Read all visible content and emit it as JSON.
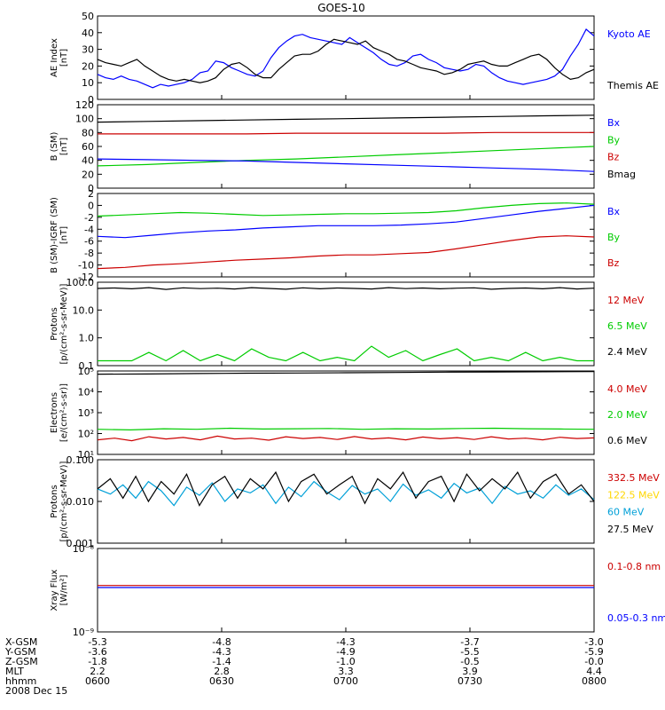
{
  "title": "GOES-10",
  "colors": {
    "black": "#000000",
    "blue": "#0000ff",
    "green": "#00cc00",
    "red": "#cc0000",
    "cyan": "#00a0d8",
    "yellow": "#ffd700"
  },
  "chart_data": [
    {
      "id": "ae",
      "type": "line",
      "ylabel": [
        "AE Index",
        "[nT]"
      ],
      "yticks": [
        "50",
        "40",
        "30",
        "20",
        "10",
        "0"
      ],
      "ylim": [
        0,
        50
      ],
      "legend": [
        {
          "name": "Kyoto AE",
          "color": "#0000ff"
        },
        {
          "name": "Themis AE",
          "color": "#000000"
        }
      ],
      "series": [
        {
          "name": "Kyoto AE",
          "color": "#0000ff",
          "y": [
            15,
            13,
            12,
            14,
            12,
            11,
            9,
            7,
            9,
            8,
            9,
            10,
            12,
            16,
            17,
            23,
            22,
            19,
            17,
            15,
            14,
            17,
            25,
            31,
            35,
            38,
            39,
            37,
            36,
            35,
            34,
            33,
            37,
            34,
            31,
            28,
            24,
            21,
            20,
            22,
            26,
            27,
            24,
            22,
            19,
            18,
            17,
            18,
            21,
            20,
            16,
            13,
            11,
            10,
            9,
            10,
            11,
            12,
            14,
            18,
            26,
            33,
            42,
            38
          ]
        },
        {
          "name": "Themis AE",
          "color": "#000000",
          "y": [
            24,
            22,
            21,
            20,
            22,
            24,
            20,
            17,
            14,
            12,
            11,
            12,
            11,
            10,
            11,
            13,
            18,
            21,
            22,
            19,
            15,
            13,
            13,
            18,
            22,
            26,
            27,
            27,
            29,
            33,
            36,
            35,
            34,
            33,
            35,
            31,
            29,
            27,
            24,
            23,
            21,
            19,
            18,
            17,
            15,
            16,
            18,
            21,
            22,
            23,
            21,
            20,
            20,
            22,
            24,
            26,
            27,
            24,
            19,
            15,
            12,
            13,
            16,
            18
          ]
        }
      ]
    },
    {
      "id": "bfield",
      "type": "line",
      "ylabel": [
        "B (SM)",
        "[nT]"
      ],
      "yticks": [
        "120",
        "100",
        "80",
        "60",
        "40",
        "20",
        "0"
      ],
      "ylim": [
        0,
        120
      ],
      "legend": [
        {
          "name": "Bx",
          "color": "#0000ff"
        },
        {
          "name": "By",
          "color": "#00cc00"
        },
        {
          "name": "Bz",
          "color": "#cc0000"
        },
        {
          "name": "Bmag",
          "color": "#000000"
        }
      ],
      "series": [
        {
          "name": "Bmag",
          "color": "#000000",
          "y": [
            95,
            96,
            97,
            98,
            99,
            100,
            101,
            102,
            103,
            104,
            105
          ]
        },
        {
          "name": "Bz",
          "color": "#cc0000",
          "y": [
            78,
            78,
            78,
            78,
            79,
            79,
            79,
            79,
            80,
            80,
            80
          ]
        },
        {
          "name": "By",
          "color": "#00cc00",
          "y": [
            32,
            34,
            37,
            40,
            42,
            45,
            48,
            51,
            54,
            57,
            60
          ]
        },
        {
          "name": "Bx",
          "color": "#0000ff",
          "y": [
            42,
            41,
            40,
            39,
            37,
            35,
            33,
            31,
            29,
            27,
            24
          ]
        }
      ]
    },
    {
      "id": "bdiff",
      "type": "line",
      "ylabel": [
        "B (SM)-IGRF (SM)",
        "[nT]"
      ],
      "yticks": [
        "2",
        "0",
        "-2",
        "-4",
        "-6",
        "-8",
        "-10",
        "-12"
      ],
      "ylim": [
        -12,
        2
      ],
      "legend": [
        {
          "name": "Bx",
          "color": "#0000ff"
        },
        {
          "name": "By",
          "color": "#00cc00"
        },
        {
          "name": "Bz",
          "color": "#cc0000"
        }
      ],
      "series": [
        {
          "name": "By",
          "color": "#00cc00",
          "y": [
            -1.8,
            -1.6,
            -1.4,
            -1.2,
            -1.3,
            -1.5,
            -1.7,
            -1.6,
            -1.5,
            -1.4,
            -1.4,
            -1.3,
            -1.2,
            -0.9,
            -0.4,
            0,
            0.3,
            0.4,
            0.2
          ]
        },
        {
          "name": "Bx",
          "color": "#0000ff",
          "y": [
            -5.2,
            -5.4,
            -5.0,
            -4.6,
            -4.3,
            -4.1,
            -3.8,
            -3.6,
            -3.4,
            -3.4,
            -3.4,
            -3.3,
            -3.1,
            -2.8,
            -2.2,
            -1.6,
            -1.0,
            -0.5,
            0.0
          ]
        },
        {
          "name": "Bz",
          "color": "#cc0000",
          "y": [
            -10.6,
            -10.4,
            -10.0,
            -9.8,
            -9.5,
            -9.2,
            -9.0,
            -8.8,
            -8.5,
            -8.3,
            -8.3,
            -8.1,
            -7.9,
            -7.3,
            -6.6,
            -5.9,
            -5.3,
            -5.1,
            -5.3
          ]
        }
      ]
    },
    {
      "id": "protons_low",
      "type": "line",
      "scale": "log",
      "ylabel": [
        "Protons",
        "[p/(cm²-s-sr-MeV)]"
      ],
      "yticks": [
        "100.0",
        "10.0",
        "1.0",
        "0.1"
      ],
      "ylim": [
        0.1,
        100
      ],
      "legend": [
        {
          "name": "12 MeV",
          "color": "#cc0000"
        },
        {
          "name": "6.5 MeV",
          "color": "#00cc00"
        },
        {
          "name": "2.4 MeV",
          "color": "#000000"
        }
      ],
      "series": [
        {
          "name": "2.4 MeV",
          "color": "#000000",
          "y": [
            60,
            62,
            58,
            64,
            55,
            63,
            59,
            61,
            57,
            64,
            60,
            56,
            63,
            58,
            62,
            60,
            57,
            64,
            59,
            62,
            58,
            61,
            63,
            56,
            60,
            62,
            58,
            64,
            57,
            61
          ]
        },
        {
          "name": "6.5 MeV",
          "color": "#00cc00",
          "y": [
            0.15,
            0.15,
            0.15,
            0.3,
            0.15,
            0.35,
            0.15,
            0.25,
            0.15,
            0.4,
            0.2,
            0.15,
            0.3,
            0.15,
            0.2,
            0.15,
            0.5,
            0.2,
            0.35,
            0.15,
            0.25,
            0.4,
            0.15,
            0.2,
            0.15,
            0.3,
            0.15,
            0.2,
            0.15,
            0.15
          ]
        }
      ]
    },
    {
      "id": "electrons",
      "type": "line",
      "scale": "log",
      "ylabel": [
        "Electrons",
        "[e/(cm²-s-sr)]"
      ],
      "yticks": [
        "10⁵",
        "10⁴",
        "10³",
        "10²",
        "10¹"
      ],
      "ylim": [
        10,
        100000
      ],
      "legend": [
        {
          "name": "4.0 MeV",
          "color": "#cc0000"
        },
        {
          "name": "2.0 MeV",
          "color": "#00cc00"
        },
        {
          "name": "0.6 MeV",
          "color": "#000000"
        }
      ],
      "series": [
        {
          "name": "0.6 MeV",
          "color": "#000000",
          "y": [
            70000,
            72000,
            75000,
            78000,
            80000,
            82000,
            85000,
            88000,
            90000,
            92000,
            94000
          ]
        },
        {
          "name": "2.0 MeV",
          "color": "#00cc00",
          "y": [
            160,
            150,
            170,
            160,
            180,
            165,
            170,
            175,
            160,
            170,
            165,
            175,
            180,
            170,
            165,
            160
          ]
        },
        {
          "name": "4.0 MeV",
          "color": "#cc0000",
          "y": [
            50,
            60,
            45,
            70,
            55,
            65,
            50,
            75,
            55,
            60,
            48,
            70,
            58,
            65,
            52,
            72,
            55,
            62,
            50,
            68,
            56,
            64,
            52,
            70,
            55,
            60,
            50,
            66,
            58,
            62
          ]
        }
      ]
    },
    {
      "id": "protons_high",
      "type": "line",
      "scale": "log",
      "ylabel": [
        "Protons",
        "[p/(cm²-s-sr-MeV)]"
      ],
      "yticks": [
        "0.100",
        "0.010",
        "0.001"
      ],
      "ylim": [
        0.001,
        0.1
      ],
      "legend": [
        {
          "name": "332.5 MeV",
          "color": "#cc0000"
        },
        {
          "name": "122.5 MeV",
          "color": "#ffd700"
        },
        {
          "name": "60 MeV",
          "color": "#00a0d8"
        },
        {
          "name": "27.5 MeV",
          "color": "#000000"
        }
      ],
      "series": [
        {
          "name": "60 MeV",
          "color": "#00a0d8",
          "y": [
            0.02,
            0.015,
            0.025,
            0.012,
            0.03,
            0.018,
            0.008,
            0.022,
            0.014,
            0.028,
            0.01,
            0.02,
            0.016,
            0.025,
            0.009,
            0.022,
            0.013,
            0.03,
            0.017,
            0.011,
            0.024,
            0.015,
            0.02,
            0.01,
            0.026,
            0.014,
            0.019,
            0.012,
            0.027,
            0.016,
            0.021,
            0.009,
            0.023,
            0.015,
            0.018,
            0.012,
            0.025,
            0.014,
            0.02,
            0.011
          ]
        },
        {
          "name": "27.5 MeV",
          "color": "#000000",
          "y": [
            0.02,
            0.035,
            0.012,
            0.04,
            0.01,
            0.03,
            0.015,
            0.045,
            0.008,
            0.025,
            0.04,
            0.012,
            0.035,
            0.02,
            0.05,
            0.01,
            0.03,
            0.045,
            0.015,
            0.025,
            0.04,
            0.009,
            0.035,
            0.02,
            0.05,
            0.012,
            0.03,
            0.04,
            0.01,
            0.045,
            0.018,
            0.035,
            0.02,
            0.05,
            0.012,
            0.03,
            0.045,
            0.015,
            0.025,
            0.01
          ]
        }
      ]
    },
    {
      "id": "xray",
      "type": "line",
      "scale": "log",
      "ylabel": [
        "Xray Flux",
        "[W/m²]"
      ],
      "yticks": [
        "10⁻⁸",
        "10⁻⁹"
      ],
      "ylim": [
        1e-09,
        1e-08
      ],
      "legend": [
        {
          "name": "0.1-0.8 nm",
          "color": "#cc0000"
        },
        {
          "name": "0.05-0.3 nm",
          "color": "#0000ff"
        }
      ],
      "series": [
        {
          "name": "0.1-0.8 nm",
          "color": "#cc0000",
          "y": [
            3.6e-09,
            3.6e-09
          ]
        },
        {
          "name": "0.05-0.3 nm",
          "color": "#0000ff",
          "y": [
            3.4e-09,
            3.4e-09
          ]
        }
      ]
    }
  ],
  "footer": {
    "rows": [
      {
        "label": "X-GSM",
        "values": [
          "-5.3",
          "-4.8",
          "-4.3",
          "-3.7",
          "-3.0"
        ]
      },
      {
        "label": "Y-GSM",
        "values": [
          "-3.6",
          "-4.3",
          "-4.9",
          "-5.5",
          "-5.9"
        ]
      },
      {
        "label": "Z-GSM",
        "values": [
          "-1.8",
          "-1.4",
          "-1.0",
          "-0.5",
          "-0.0"
        ]
      },
      {
        "label": "MLT",
        "values": [
          "2.2",
          "2.8",
          "3.3",
          "3.9",
          "4.4"
        ]
      },
      {
        "label": "hhmm",
        "values": [
          "0600",
          "0630",
          "0700",
          "0730",
          "0800"
        ]
      }
    ],
    "date": "2008 Dec 15"
  }
}
